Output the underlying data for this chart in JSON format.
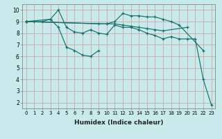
{
  "xlabel": "Humidex (Indice chaleur)",
  "ylabel": "",
  "bg_color": "#c8eaea",
  "grid_color": "#c8a8a8",
  "line_color": "#1a6e6a",
  "xlim": [
    -0.5,
    23.5
  ],
  "ylim": [
    1.5,
    10.5
  ],
  "xticks": [
    0,
    1,
    2,
    3,
    4,
    5,
    6,
    7,
    8,
    9,
    10,
    11,
    12,
    13,
    14,
    15,
    16,
    17,
    18,
    19,
    20,
    21,
    22,
    23
  ],
  "yticks": [
    2,
    3,
    4,
    5,
    6,
    7,
    8,
    9,
    10
  ],
  "series": [
    {
      "x": [
        0,
        1,
        2,
        3,
        4,
        5,
        6,
        7,
        8,
        9,
        10,
        11,
        12,
        13,
        14,
        15,
        16,
        17,
        18,
        19,
        20,
        21,
        22,
        23
      ],
      "y": [
        9.0,
        9.0,
        9.0,
        9.2,
        10.0,
        8.5,
        8.1,
        8.0,
        8.3,
        8.0,
        7.9,
        8.7,
        8.5,
        8.5,
        8.3,
        8.0,
        7.8,
        7.5,
        7.7,
        7.5,
        7.5,
        7.5,
        4.0,
        1.8
      ]
    },
    {
      "x": [
        0,
        3,
        4,
        5,
        6,
        7,
        8,
        9
      ],
      "y": [
        9.0,
        9.2,
        8.5,
        6.8,
        6.5,
        6.1,
        6.0,
        6.5
      ]
    },
    {
      "x": [
        0,
        9,
        10,
        11,
        12,
        13,
        14,
        15,
        16,
        17,
        20
      ],
      "y": [
        9.0,
        8.8,
        8.8,
        8.8,
        8.7,
        8.6,
        8.5,
        8.4,
        8.3,
        8.2,
        8.5
      ]
    },
    {
      "x": [
        0,
        10,
        11,
        12,
        13,
        14,
        15,
        16,
        17,
        18,
        19,
        22
      ],
      "y": [
        9.0,
        8.8,
        9.0,
        9.7,
        9.5,
        9.5,
        9.4,
        9.4,
        9.2,
        9.0,
        8.7,
        6.5
      ]
    }
  ]
}
